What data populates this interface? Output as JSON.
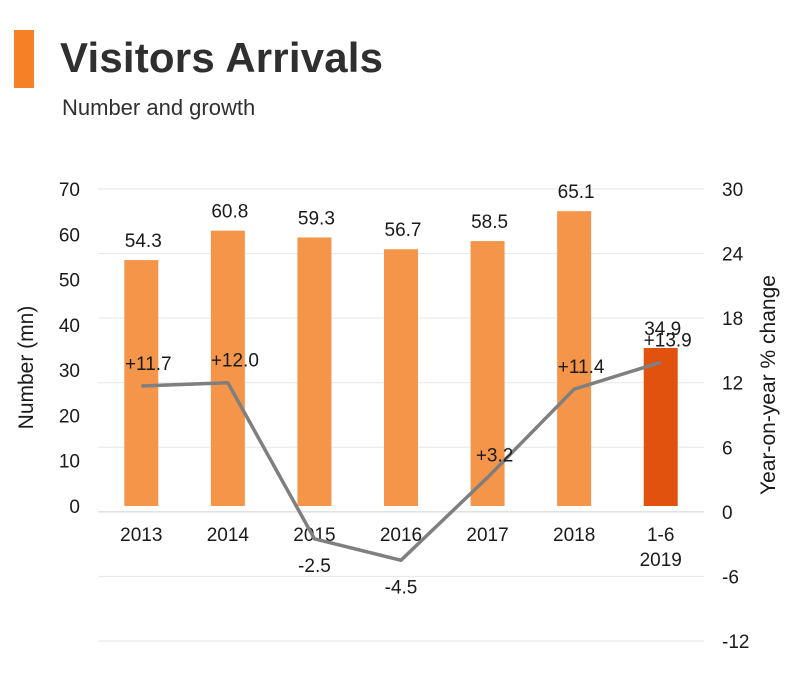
{
  "header": {
    "title": "Visitors Arrivals",
    "subtitle": "Number and growth",
    "accent_color": "#f58025"
  },
  "chart_data": {
    "type": "bar",
    "categories": [
      [
        "2013"
      ],
      [
        "2014"
      ],
      [
        "2015"
      ],
      [
        "2016"
      ],
      [
        "2017"
      ],
      [
        "2018"
      ],
      [
        "1-6",
        "2019"
      ]
    ],
    "series": [
      {
        "type": "bar",
        "axis": "left",
        "values": [
          54.3,
          60.8,
          59.3,
          56.7,
          58.5,
          65.1,
          34.9
        ],
        "labels": [
          "54.3",
          "60.8",
          "59.3",
          "56.7",
          "58.5",
          "65.1",
          "34.9"
        ],
        "colors": [
          "#f5954a",
          "#f5954a",
          "#f5954a",
          "#f5954a",
          "#f5954a",
          "#f5954a",
          "#e2520f"
        ]
      },
      {
        "type": "line",
        "axis": "right",
        "values": [
          11.7,
          12.0,
          -2.5,
          -4.5,
          3.2,
          11.4,
          13.9
        ],
        "labels": [
          "+11.7",
          "+12.0",
          "-2.5",
          "-4.5",
          "+3.2",
          "+11.4",
          "+13.9"
        ],
        "color": "#7f7f7f"
      }
    ],
    "ylabel": "Number (mn)",
    "y2label": "Year-on-year % change",
    "ylim": [
      0,
      70
    ],
    "yticks": [
      "0",
      "10",
      "20",
      "30",
      "40",
      "50",
      "60",
      "70"
    ],
    "y2lim": [
      -12,
      30
    ],
    "y2ticks": [
      "-12",
      "-6",
      "0",
      "6",
      "12",
      "18",
      "24",
      "30"
    ],
    "grid": true,
    "grid_color": "#e6e6e6"
  }
}
